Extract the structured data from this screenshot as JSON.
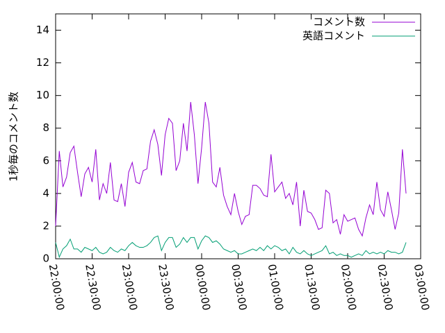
{
  "chart_data": {
    "type": "line",
    "ylabel": "1秒毎のコメント数",
    "x": [
      "22:00:00",
      "22:03:00",
      "22:06:00",
      "22:09:00",
      "22:12:00",
      "22:15:00",
      "22:18:00",
      "22:21:00",
      "22:24:00",
      "22:27:00",
      "22:30:00",
      "22:33:00",
      "22:36:00",
      "22:39:00",
      "22:42:00",
      "22:45:00",
      "22:48:00",
      "22:51:00",
      "22:54:00",
      "22:57:00",
      "23:00:00",
      "23:03:00",
      "23:06:00",
      "23:09:00",
      "23:12:00",
      "23:15:00",
      "23:18:00",
      "23:21:00",
      "23:24:00",
      "23:27:00",
      "23:30:00",
      "23:33:00",
      "23:36:00",
      "23:39:00",
      "23:42:00",
      "23:45:00",
      "23:48:00",
      "23:51:00",
      "23:54:00",
      "23:57:00",
      "00:00:00",
      "00:03:00",
      "00:06:00",
      "00:09:00",
      "00:12:00",
      "00:15:00",
      "00:18:00",
      "00:21:00",
      "00:24:00",
      "00:27:00",
      "00:30:00",
      "00:33:00",
      "00:36:00",
      "00:39:00",
      "00:42:00",
      "00:45:00",
      "00:48:00",
      "00:51:00",
      "00:54:00",
      "00:57:00",
      "01:00:00",
      "01:03:00",
      "01:06:00",
      "01:09:00",
      "01:12:00",
      "01:15:00",
      "01:18:00",
      "01:21:00",
      "01:24:00",
      "01:27:00",
      "01:30:00",
      "01:33:00",
      "01:36:00",
      "01:39:00",
      "01:42:00",
      "01:45:00",
      "01:48:00",
      "01:51:00",
      "01:54:00",
      "01:57:00",
      "02:00:00",
      "02:03:00",
      "02:06:00",
      "02:09:00",
      "02:12:00",
      "02:15:00",
      "02:18:00",
      "02:21:00",
      "02:24:00",
      "02:27:00",
      "02:30:00",
      "02:33:00",
      "02:36:00",
      "02:39:00",
      "02:42:00",
      "02:45:00",
      "02:48:00"
    ],
    "series": [
      {
        "name": "コメント数",
        "color": "#9400d3",
        "values": [
          2.0,
          6.6,
          4.4,
          5.0,
          6.5,
          6.9,
          5.3,
          3.8,
          5.2,
          5.6,
          4.7,
          6.7,
          3.6,
          4.6,
          4.0,
          5.9,
          3.6,
          3.5,
          4.6,
          3.2,
          5.3,
          5.9,
          4.7,
          4.6,
          5.4,
          5.5,
          7.2,
          7.9,
          7.0,
          5.1,
          7.6,
          8.6,
          8.3,
          5.4,
          6.0,
          8.3,
          6.6,
          9.6,
          7.6,
          4.6,
          6.8,
          9.6,
          8.3,
          4.7,
          4.4,
          5.6,
          3.9,
          3.2,
          2.7,
          4.0,
          2.9,
          2.1,
          2.6,
          2.7,
          4.5,
          4.5,
          4.3,
          3.9,
          3.8,
          6.4,
          4.1,
          4.4,
          4.7,
          3.7,
          4.0,
          3.3,
          4.7,
          2.0,
          4.2,
          2.9,
          2.8,
          2.4,
          1.8,
          1.9,
          4.2,
          4.0,
          2.2,
          2.4,
          1.5,
          2.7,
          2.3,
          2.4,
          2.5,
          1.8,
          1.4,
          2.5,
          3.3,
          2.7,
          4.7,
          3.0,
          2.6,
          4.1,
          3.0,
          1.8,
          2.8,
          6.7,
          4.0
        ]
      },
      {
        "name": "英語コメント",
        "color": "#009e73",
        "values": [
          1.0,
          0.1,
          0.6,
          0.8,
          1.2,
          0.6,
          0.6,
          0.4,
          0.7,
          0.6,
          0.5,
          0.7,
          0.4,
          0.3,
          0.4,
          0.7,
          0.5,
          0.4,
          0.6,
          0.5,
          0.8,
          1.0,
          0.8,
          0.7,
          0.7,
          0.8,
          1.0,
          1.3,
          1.4,
          0.5,
          1.0,
          1.3,
          1.3,
          0.7,
          0.9,
          1.3,
          1.0,
          1.3,
          1.3,
          0.6,
          1.1,
          1.4,
          1.3,
          1.0,
          1.1,
          0.9,
          0.6,
          0.5,
          0.4,
          0.5,
          0.3,
          0.3,
          0.4,
          0.5,
          0.6,
          0.5,
          0.7,
          0.5,
          0.8,
          0.6,
          0.8,
          0.7,
          0.5,
          0.6,
          0.3,
          0.7,
          0.4,
          0.3,
          0.5,
          0.3,
          0.2,
          0.3,
          0.4,
          0.5,
          0.8,
          0.3,
          0.4,
          0.2,
          0.3,
          0.2,
          0.2,
          0.1,
          0.2,
          0.3,
          0.2,
          0.5,
          0.3,
          0.4,
          0.3,
          0.4,
          0.3,
          0.5,
          0.4,
          0.4,
          0.3,
          0.4,
          1.0
        ]
      }
    ],
    "xlim": [
      "22:00:00",
      "03:00:00"
    ],
    "xticks": [
      "22:00:00",
      "22:30:00",
      "23:00:00",
      "23:30:00",
      "00:00:00",
      "00:30:00",
      "01:00:00",
      "01:30:00",
      "02:00:00",
      "02:30:00",
      "03:00:00"
    ],
    "ylim": [
      0,
      15
    ],
    "yticks": [
      0,
      2,
      4,
      6,
      8,
      10,
      12,
      14
    ],
    "legend": "upper right"
  }
}
